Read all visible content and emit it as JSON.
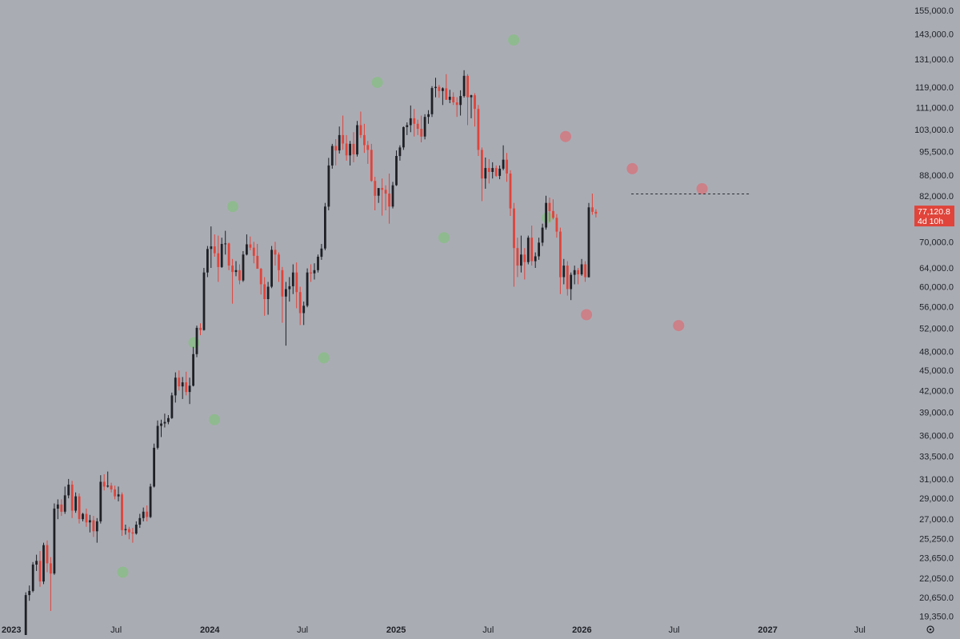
{
  "chart_data": {
    "type": "candlestick",
    "scale": "log",
    "grid": false,
    "background_color": "#aaacb4",
    "up_color": "#1e2026",
    "down_color": "#e0443a",
    "y_axis_position": "right",
    "ylim": [
      18900,
      158000
    ],
    "xlim": [
      "2023-01-01",
      "2027-09-10"
    ],
    "y_ticks": [
      "155,000.0",
      "143,000.0",
      "131,000.0",
      "119,000.0",
      "111,000.0",
      "103,000.0",
      "95,500.0",
      "88,000.0",
      "82,000.0",
      "76,000.0",
      "70,000.0",
      "64,000.0",
      "60,000.0",
      "56,000.0",
      "52,000.0",
      "48,000.0",
      "45,000.0",
      "42,000.0",
      "39,000.0",
      "36,000.0",
      "33,500.0",
      "31,000.0",
      "29,000.0",
      "27,000.0",
      "25,250.0",
      "23,650.0",
      "22,050.0",
      "20,650.0",
      "19,350.0"
    ],
    "x_ticks": [
      {
        "date": "2023-01-01",
        "label": "2023",
        "year": true
      },
      {
        "date": "2023-07-01",
        "label": "Jul",
        "year": false
      },
      {
        "date": "2024-01-01",
        "label": "2024",
        "year": true
      },
      {
        "date": "2024-07-01",
        "label": "Jul",
        "year": false
      },
      {
        "date": "2025-01-01",
        "label": "2025",
        "year": true
      },
      {
        "date": "2025-07-01",
        "label": "Jul",
        "year": false
      },
      {
        "date": "2026-01-01",
        "label": "2026",
        "year": true
      },
      {
        "date": "2026-07-01",
        "label": "Jul",
        "year": false
      },
      {
        "date": "2027-01-01",
        "label": "2027",
        "year": true
      },
      {
        "date": "2027-07-01",
        "label": "Jul",
        "year": false
      }
    ],
    "series_start": "2023-01-01",
    "candle_interval_days": 7,
    "candles_ohlc": [
      [
        16500,
        21000,
        16400,
        20800
      ],
      [
        20800,
        21500,
        20400,
        21100
      ],
      [
        21100,
        23300,
        21000,
        23100
      ],
      [
        23100,
        23900,
        22600,
        23400
      ],
      [
        23400,
        24200,
        21400,
        21800
      ],
      [
        21800,
        24900,
        21600,
        24700
      ],
      [
        24700,
        25100,
        22500,
        23200
      ],
      [
        23200,
        23700,
        19700,
        22400
      ],
      [
        22400,
        28500,
        22300,
        28000
      ],
      [
        28000,
        28900,
        27000,
        28400
      ],
      [
        28400,
        28900,
        27300,
        27700
      ],
      [
        27700,
        30200,
        27500,
        29300
      ],
      [
        29300,
        31000,
        29000,
        30400
      ],
      [
        30400,
        30800,
        27100,
        27800
      ],
      [
        27800,
        29600,
        27600,
        29200
      ],
      [
        29200,
        29500,
        26600,
        27000
      ],
      [
        27000,
        27600,
        26800,
        27500
      ],
      [
        27500,
        28000,
        26300,
        26700
      ],
      [
        26700,
        27400,
        25800,
        26900
      ],
      [
        26900,
        27300,
        25400,
        25900
      ],
      [
        25900,
        27100,
        24900,
        26800
      ],
      [
        26800,
        31400,
        26600,
        30700
      ],
      [
        30700,
        31500,
        29800,
        30200
      ],
      [
        30200,
        31800,
        30100,
        30300
      ],
      [
        30300,
        30600,
        29600,
        29900
      ],
      [
        29900,
        30300,
        28900,
        29200
      ],
      [
        29200,
        30200,
        28700,
        29400
      ],
      [
        29400,
        29600,
        25500,
        26000
      ],
      [
        26000,
        26500,
        25600,
        26100
      ],
      [
        26100,
        26300,
        25200,
        25800
      ],
      [
        25800,
        26200,
        24900,
        25700
      ],
      [
        25700,
        26800,
        25600,
        26500
      ],
      [
        26500,
        27500,
        26200,
        27100
      ],
      [
        27100,
        28100,
        26800,
        27700
      ],
      [
        27700,
        28300,
        26800,
        27200
      ],
      [
        27200,
        30500,
        27100,
        30200
      ],
      [
        30200,
        35000,
        30100,
        34500
      ],
      [
        34500,
        37900,
        34300,
        37200
      ],
      [
        37200,
        38000,
        35800,
        37500
      ],
      [
        37500,
        38800,
        37000,
        37700
      ],
      [
        37700,
        38600,
        37400,
        38200
      ],
      [
        38200,
        41700,
        38100,
        41300
      ],
      [
        41300,
        44700,
        40300,
        43900
      ],
      [
        43900,
        45000,
        42000,
        42600
      ],
      [
        42600,
        44000,
        40800,
        43200
      ],
      [
        43200,
        44800,
        41300,
        41800
      ],
      [
        41800,
        43900,
        40100,
        42700
      ],
      [
        42700,
        48800,
        42600,
        47600
      ],
      [
        47600,
        52500,
        47100,
        52100
      ],
      [
        52100,
        52900,
        50800,
        51700
      ],
      [
        51700,
        64000,
        51600,
        63000
      ],
      [
        63000,
        69000,
        62000,
        68300
      ],
      [
        68300,
        73800,
        64000,
        68900
      ],
      [
        68900,
        71800,
        66500,
        67300
      ],
      [
        67300,
        71500,
        61000,
        64200
      ],
      [
        64200,
        71000,
        64000,
        69500
      ],
      [
        69500,
        72700,
        67000,
        69600
      ],
      [
        69600,
        69800,
        63500,
        64500
      ],
      [
        64500,
        66000,
        56600,
        63100
      ],
      [
        63100,
        65500,
        62200,
        63500
      ],
      [
        63500,
        64800,
        60500,
        61300
      ],
      [
        61300,
        67800,
        61000,
        67000
      ],
      [
        67000,
        71800,
        66800,
        69400
      ],
      [
        69400,
        71300,
        68000,
        68600
      ],
      [
        68600,
        70000,
        65000,
        66700
      ],
      [
        66700,
        69500,
        64500,
        63800
      ],
      [
        63800,
        64000,
        58400,
        60500
      ],
      [
        60500,
        62000,
        54300,
        57500
      ],
      [
        57500,
        61000,
        54500,
        60000
      ],
      [
        60000,
        69000,
        59700,
        68100
      ],
      [
        68100,
        70000,
        64500,
        67000
      ],
      [
        67000,
        67500,
        61000,
        63500
      ],
      [
        63500,
        64200,
        53000,
        58000
      ],
      [
        58000,
        61000,
        49000,
        59500
      ],
      [
        59500,
        62000,
        57000,
        60100
      ],
      [
        60100,
        64800,
        58500,
        63000
      ],
      [
        63000,
        65200,
        55700,
        58900
      ],
      [
        58900,
        60000,
        52600,
        54800
      ],
      [
        54800,
        57000,
        52600,
        56200
      ],
      [
        56200,
        63900,
        55900,
        63000
      ],
      [
        63000,
        64800,
        61000,
        62800
      ],
      [
        62800,
        65000,
        61500,
        63500
      ],
      [
        63500,
        67000,
        63000,
        66500
      ],
      [
        66500,
        69500,
        65800,
        68400
      ],
      [
        68400,
        80000,
        68000,
        79000
      ],
      [
        79000,
        93400,
        78000,
        91000
      ],
      [
        91000,
        98000,
        90000,
        97300
      ],
      [
        97300,
        99600,
        91000,
        95800
      ],
      [
        95800,
        104000,
        94800,
        101000
      ],
      [
        101000,
        108000,
        96000,
        98100
      ],
      [
        98100,
        101000,
        92500,
        94200
      ],
      [
        94200,
        99000,
        91000,
        98000
      ],
      [
        98000,
        102000,
        92000,
        94500
      ],
      [
        94500,
        106000,
        93800,
        104500
      ],
      [
        104500,
        109500,
        100000,
        101000
      ],
      [
        101000,
        105000,
        95000,
        97600
      ],
      [
        97600,
        99000,
        91500,
        96000
      ],
      [
        96000,
        98000,
        86000,
        86300
      ],
      [
        86300,
        87500,
        78000,
        82000
      ],
      [
        82000,
        84000,
        80000,
        84200
      ],
      [
        84200,
        87000,
        76600,
        83700
      ],
      [
        83700,
        85000,
        78000,
        82600
      ],
      [
        82600,
        88500,
        74500,
        79000
      ],
      [
        79000,
        86000,
        78500,
        85000
      ],
      [
        85000,
        95800,
        84800,
        94000
      ],
      [
        94000,
        97500,
        92500,
        96800
      ],
      [
        96800,
        104000,
        96000,
        103800
      ],
      [
        103800,
        105500,
        101000,
        104500
      ],
      [
        104500,
        111800,
        102000,
        107000
      ],
      [
        107000,
        110500,
        100500,
        105000
      ],
      [
        105000,
        106500,
        101000,
        103200
      ],
      [
        103200,
        108000,
        98500,
        100500
      ],
      [
        100500,
        108500,
        99500,
        107500
      ],
      [
        107500,
        110000,
        105000,
        108500
      ],
      [
        108500,
        119500,
        107500,
        118700
      ],
      [
        118700,
        123000,
        115000,
        119200
      ],
      [
        119200,
        120000,
        114800,
        117500
      ],
      [
        117500,
        119000,
        112000,
        118600
      ],
      [
        118600,
        124500,
        114000,
        114000
      ],
      [
        114000,
        118000,
        112700,
        115200
      ],
      [
        115200,
        117000,
        112000,
        113000
      ],
      [
        113000,
        115000,
        107500,
        112000
      ],
      [
        112000,
        117800,
        108000,
        115500
      ],
      [
        115500,
        126200,
        114900,
        123800
      ],
      [
        123800,
        124500,
        104500,
        115000
      ],
      [
        115000,
        116000,
        107000,
        115800
      ],
      [
        115800,
        116600,
        104000,
        110500
      ],
      [
        110500,
        112000,
        94000,
        96000
      ],
      [
        96000,
        96800,
        80500,
        87000
      ],
      [
        87000,
        93500,
        84000,
        90200
      ],
      [
        90200,
        93000,
        85500,
        89000
      ],
      [
        89000,
        92000,
        87000,
        90200
      ],
      [
        90200,
        91000,
        87500,
        87800
      ],
      [
        87800,
        91000,
        86800,
        90000
      ],
      [
        90000,
        97500,
        89500,
        92800
      ],
      [
        92800,
        95000,
        86000,
        88500
      ],
      [
        88500,
        89500,
        76500,
        78500
      ],
      [
        78500,
        80000,
        60000,
        68500
      ],
      [
        68500,
        71000,
        62000,
        64500
      ],
      [
        64500,
        71500,
        63000,
        67000
      ],
      [
        67000,
        68500,
        61500,
        65300
      ],
      [
        65300,
        71500,
        64800,
        71000
      ],
      [
        71000,
        74000,
        64500,
        65500
      ],
      [
        65500,
        67500,
        64000,
        66600
      ],
      [
        66600,
        71000,
        65800,
        69800
      ],
      [
        69800,
        74500,
        69000,
        73500
      ],
      [
        73500,
        82000,
        73000,
        80000
      ],
      [
        80000,
        81500,
        75000,
        77800
      ],
      [
        77800,
        81000,
        75600,
        76000
      ],
      [
        76000,
        77000,
        71000,
        72500
      ],
      [
        72500,
        73500,
        58500,
        62000
      ],
      [
        62000,
        66000,
        60500,
        64500
      ],
      [
        64500,
        65500,
        58200,
        59500
      ],
      [
        59500,
        63000,
        57300,
        62500
      ],
      [
        62500,
        64500,
        60500,
        63500
      ],
      [
        63500,
        64000,
        60500,
        62600
      ],
      [
        62600,
        66000,
        62300,
        64800
      ],
      [
        64800,
        65500,
        61000,
        62000
      ],
      [
        62000,
        80000,
        61900,
        78800
      ],
      [
        78800,
        82600,
        76800,
        77600
      ],
      [
        77600,
        78300,
        76100,
        77120.8
      ]
    ],
    "signal_markers": [
      {
        "date": "2023-07-14",
        "price": 22500,
        "type": "green"
      },
      {
        "date": "2023-12-01",
        "price": 49500,
        "type": "green"
      },
      {
        "date": "2024-01-10",
        "price": 38000,
        "type": "green"
      },
      {
        "date": "2024-02-15",
        "price": 79000,
        "type": "green"
      },
      {
        "date": "2024-08-12",
        "price": 47000,
        "type": "green"
      },
      {
        "date": "2024-11-25",
        "price": 121000,
        "type": "green"
      },
      {
        "date": "2025-04-05",
        "price": 71000,
        "type": "green"
      },
      {
        "date": "2025-08-20",
        "price": 140000,
        "type": "green"
      },
      {
        "date": "2025-10-25",
        "price": 76000,
        "type": "green"
      },
      {
        "date": "2025-11-30",
        "price": 100500,
        "type": "red"
      },
      {
        "date": "2026-01-10",
        "price": 54500,
        "type": "red"
      },
      {
        "date": "2026-04-10",
        "price": 90000,
        "type": "red"
      },
      {
        "date": "2026-07-10",
        "price": 52500,
        "type": "red"
      },
      {
        "date": "2026-08-25",
        "price": 84000,
        "type": "red"
      }
    ],
    "green_marker_color": "#8fba8f",
    "red_marker_color": "#cc8088",
    "dashed_line": {
      "price": 82500,
      "from": "2026-04-08",
      "to": "2026-11-25",
      "color": "#2a2c33"
    },
    "last_price": {
      "value": "77,120.8",
      "countdown": "4d 10h",
      "price": 77120.8,
      "color": "#e0443a"
    }
  }
}
